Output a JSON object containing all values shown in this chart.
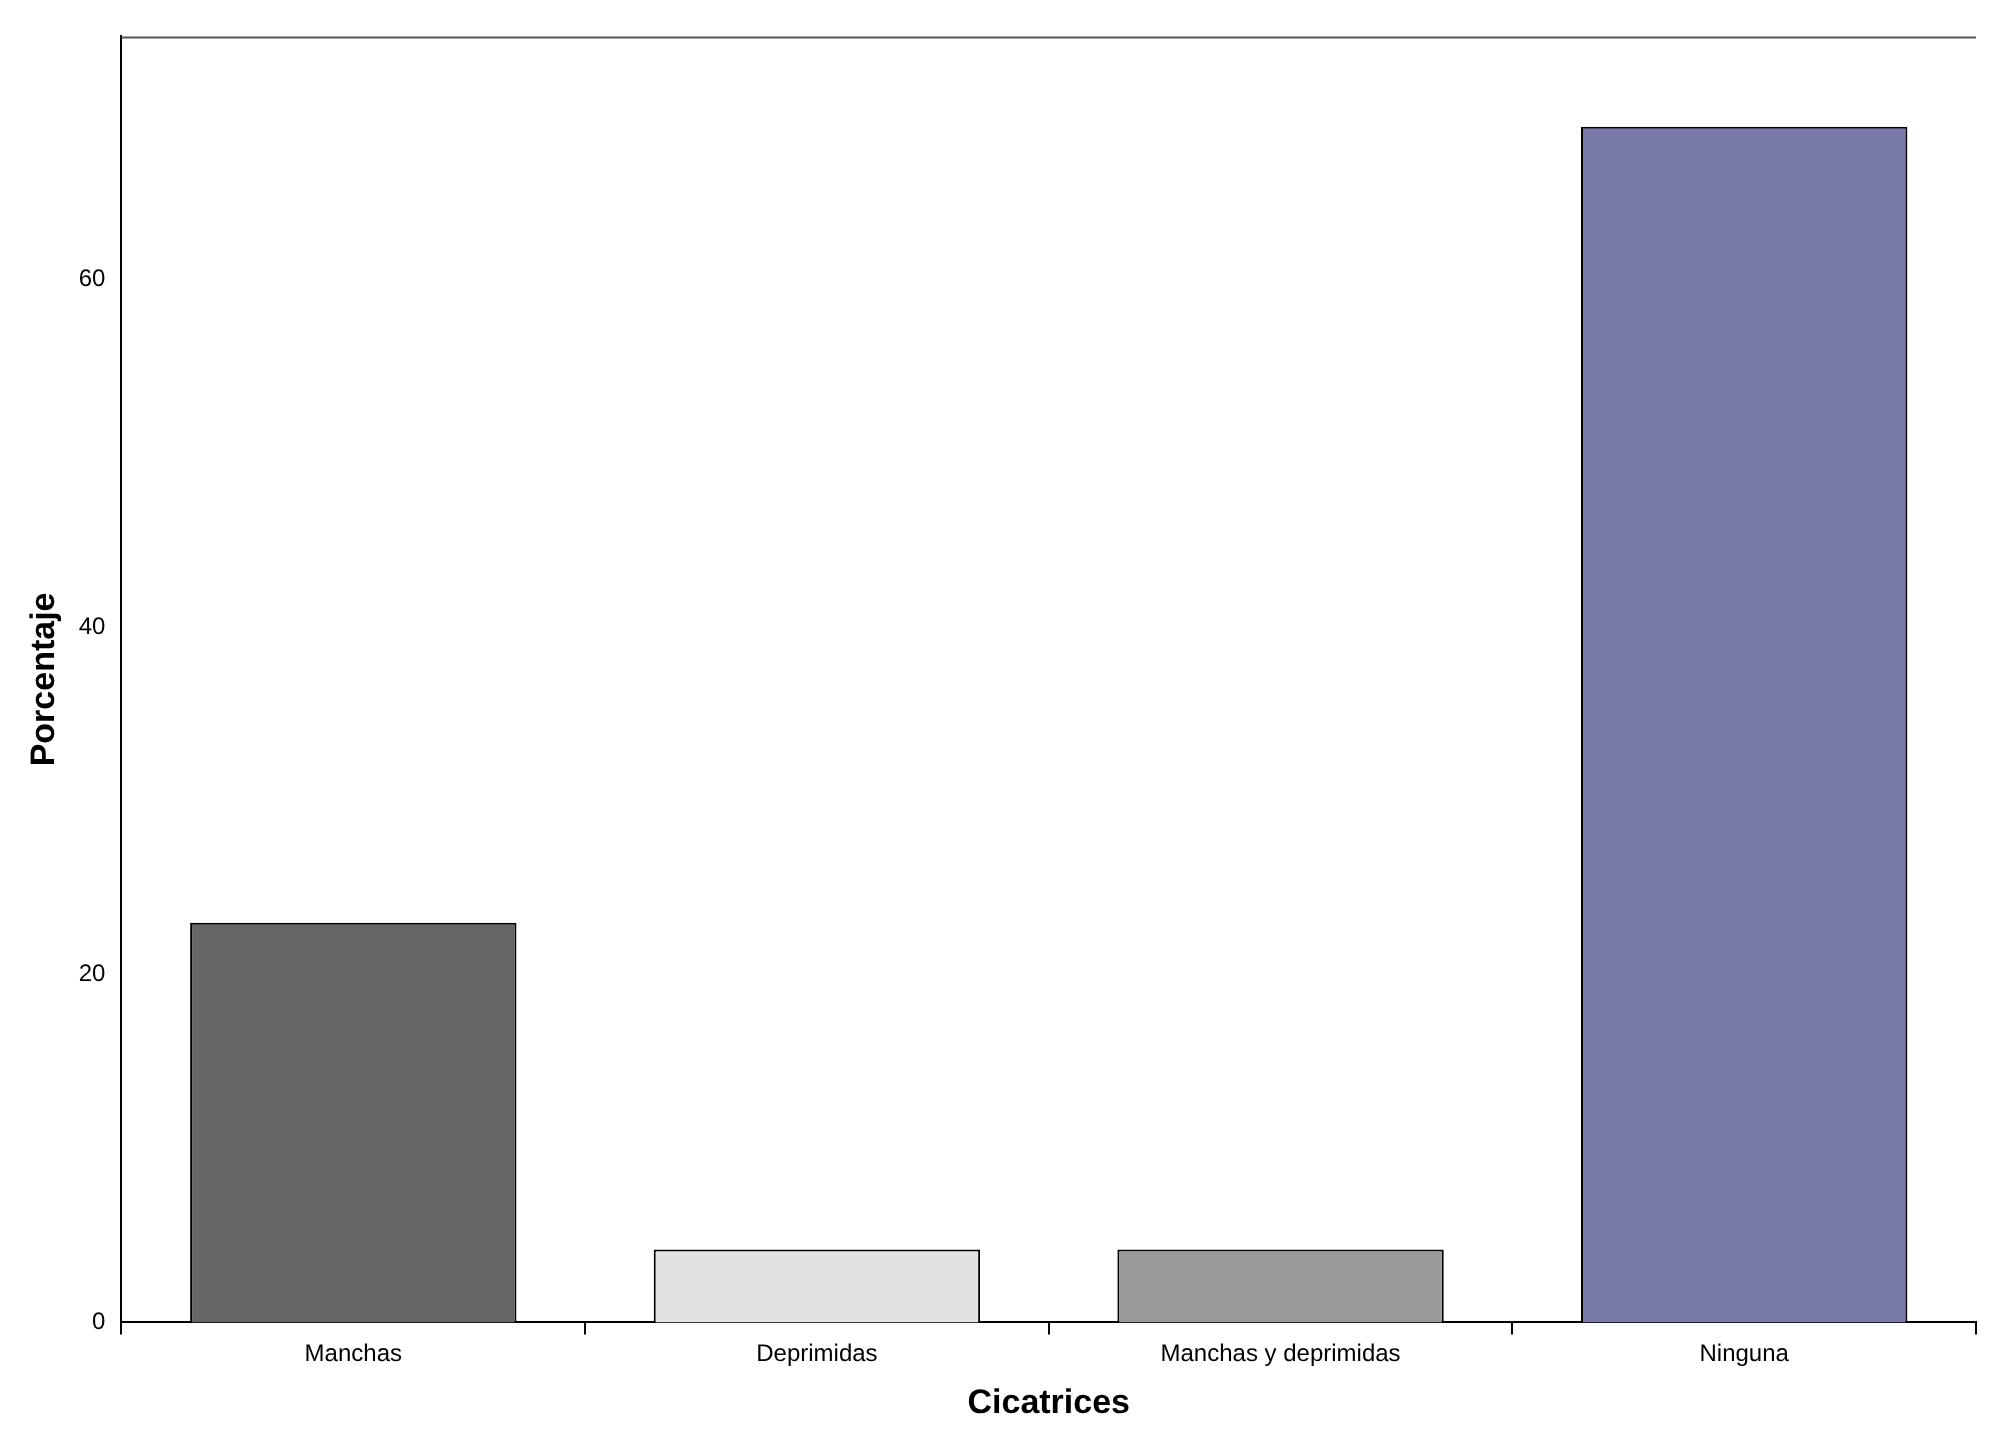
{
  "chart_data": {
    "type": "bar",
    "xlabel": "Cicatrices",
    "ylabel": "Porcentaje",
    "categories": [
      "Manchas",
      "Deprimidas",
      "Manchas y deprimidas",
      "Ninguna"
    ],
    "values": [
      23,
      4.2,
      4.2,
      68.8
    ],
    "colors": [
      "#666666",
      "#e2e2e2",
      "#999999",
      "#7879a6"
    ],
    "ylim": [
      0,
      74
    ],
    "yticks": [
      0,
      20,
      40,
      60
    ],
    "grid": false,
    "legend": false
  }
}
